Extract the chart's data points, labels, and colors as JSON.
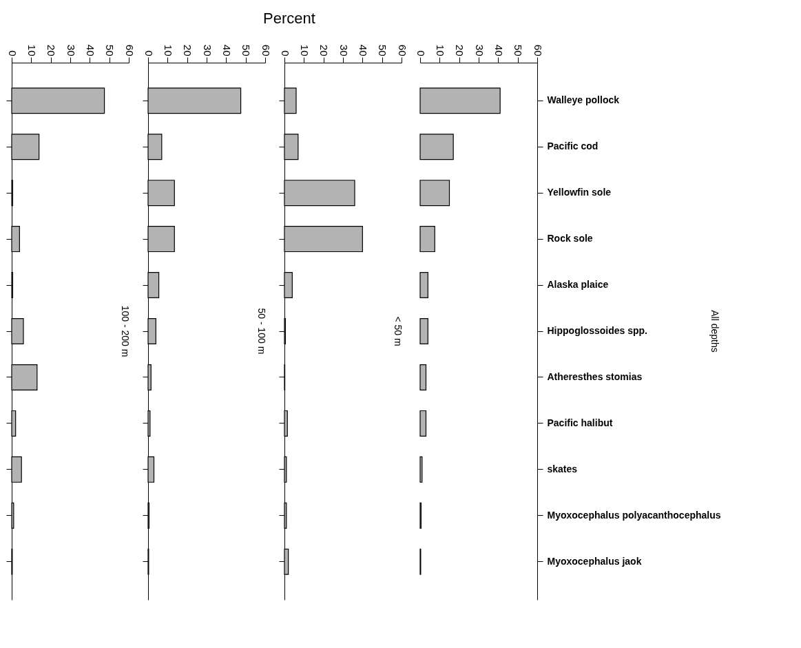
{
  "chart_data": [
    {
      "type": "bar",
      "orientation": "horizontal",
      "title": "100 - 200 m",
      "annotations": [
        "Percent"
      ],
      "tick_labels": "x",
      "color": "#b3b3b3",
      "xlim": [
        0,
        60
      ],
      "xticks": [
        0,
        10,
        20,
        30,
        40,
        50,
        60
      ],
      "categories": [
        null,
        null,
        null,
        null,
        null,
        null,
        null,
        null,
        null,
        null,
        null
      ],
      "values": [
        47.5,
        14,
        0.5,
        4,
        0.5,
        6,
        13,
        2,
        5,
        1,
        0.3
      ]
    },
    {
      "type": "bar",
      "orientation": "horizontal",
      "title": "50 - 100 m",
      "tick_labels": "x",
      "color": "#b3b3b3",
      "xlim": [
        0,
        60
      ],
      "xticks": [
        0,
        10,
        20,
        30,
        40,
        50,
        60
      ],
      "categories": [
        null,
        null,
        null,
        null,
        null,
        null,
        null,
        null,
        null,
        null,
        null
      ],
      "values": [
        47.5,
        7,
        13.5,
        13.5,
        5.5,
        4,
        1.5,
        1,
        3,
        0.5,
        0.3
      ]
    },
    {
      "type": "bar",
      "orientation": "horizontal",
      "title": "< 50 m",
      "tick_labels": "x",
      "color": "#b3b3b3",
      "xlim": [
        0,
        60
      ],
      "xticks": [
        0,
        10,
        20,
        30,
        40,
        50,
        60
      ],
      "categories": [
        null,
        null,
        null,
        null,
        null,
        null,
        null,
        null,
        null,
        null,
        null
      ],
      "values": [
        6,
        7,
        36,
        40,
        4,
        0.5,
        0.2,
        1.5,
        1,
        1,
        2
      ]
    },
    {
      "type": "bar",
      "orientation": "horizontal",
      "title": "All depths",
      "color": "#b3b3b3",
      "xlim": [
        0,
        60
      ],
      "xticks": [
        0,
        10,
        20,
        30,
        40,
        50,
        60
      ],
      "categories": [
        "Walleye pollock",
        "Pacific cod",
        "Yellowfin sole",
        "Rock sole",
        "Alaska plaice",
        "Hippoglossoides spp.",
        "Atheresthes  stomias",
        "Pacific halibut",
        "skates",
        "Myoxocephalus  polyacanthocephalus",
        "Myoxocephalus  jaok"
      ],
      "values": [
        41,
        17,
        15,
        7.5,
        4,
        4,
        3,
        3,
        1,
        0.5,
        0.3
      ]
    }
  ]
}
